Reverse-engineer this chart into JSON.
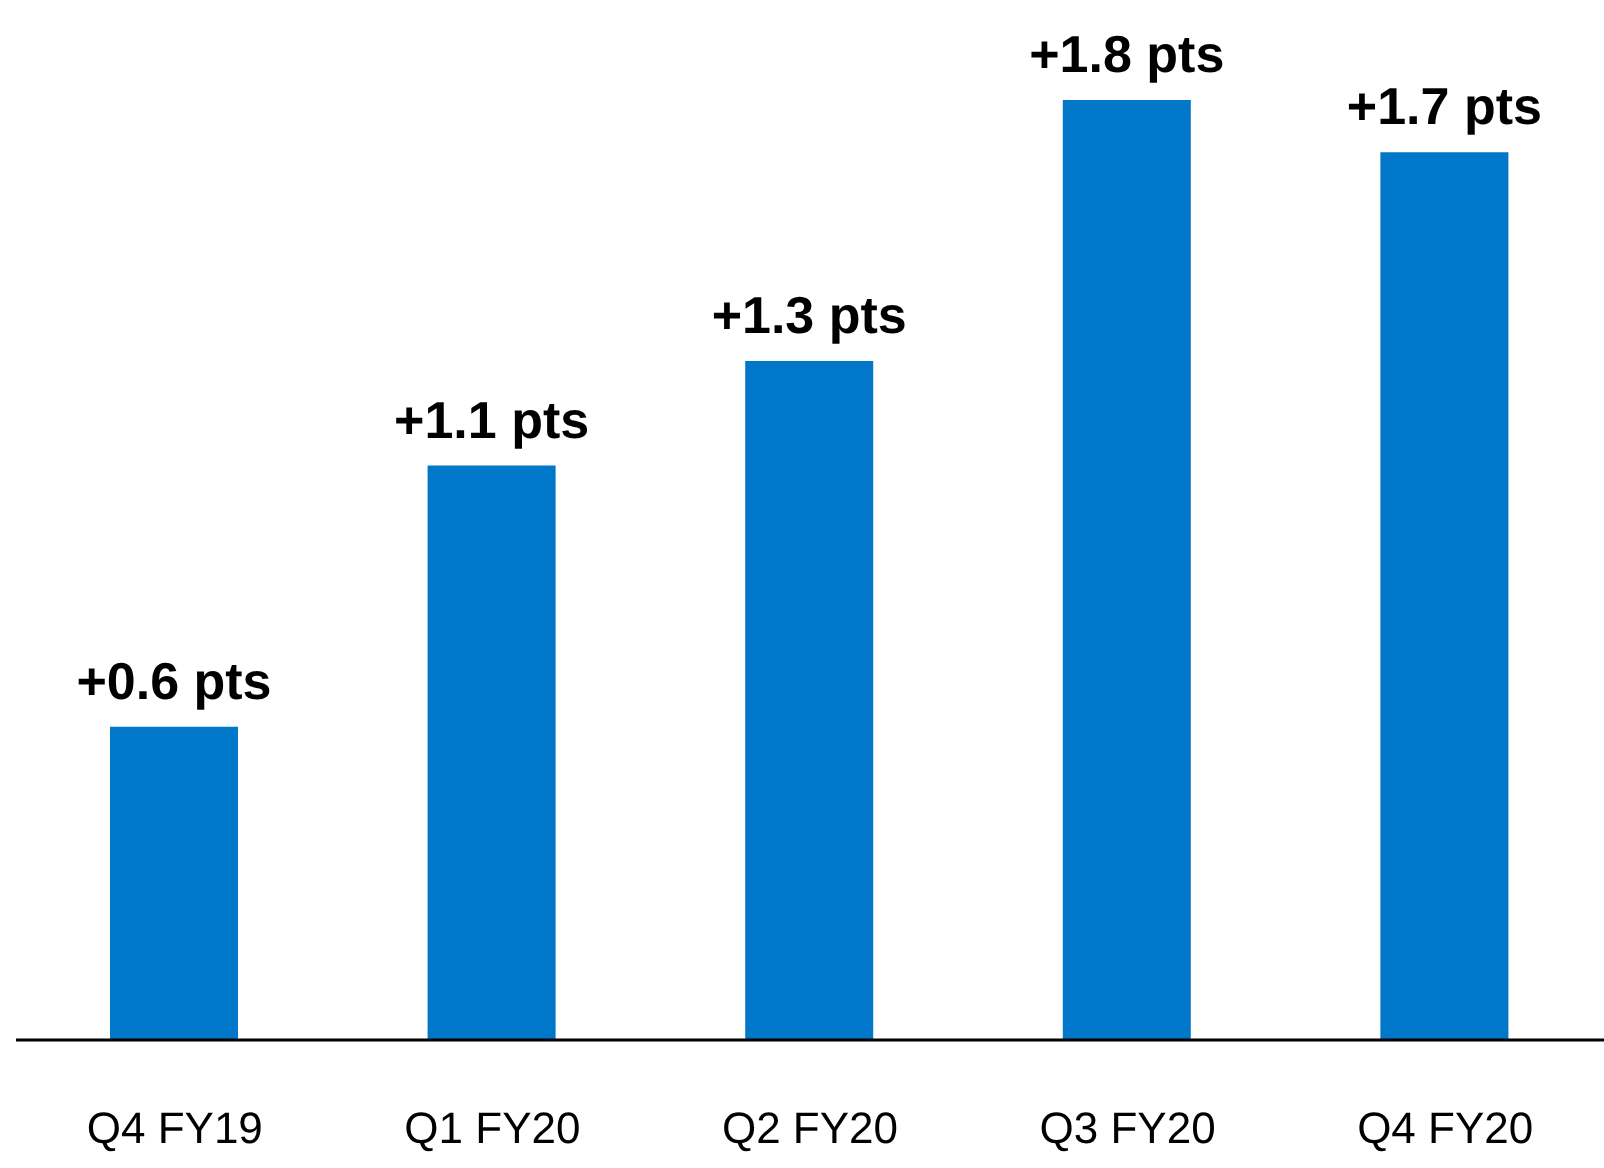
{
  "chart_data": {
    "type": "bar",
    "categories": [
      "Q4 FY19",
      "Q1 FY20",
      "Q2 FY20",
      "Q3 FY20",
      "Q4 FY20"
    ],
    "values": [
      0.6,
      1.1,
      1.3,
      1.8,
      1.7
    ],
    "value_labels": [
      "+0.6 pts",
      "+1.1 pts",
      "+1.3 pts",
      "+1.8 pts",
      "+1.7 pts"
    ],
    "color": "#0077c8",
    "grid": false,
    "legend": false
  }
}
